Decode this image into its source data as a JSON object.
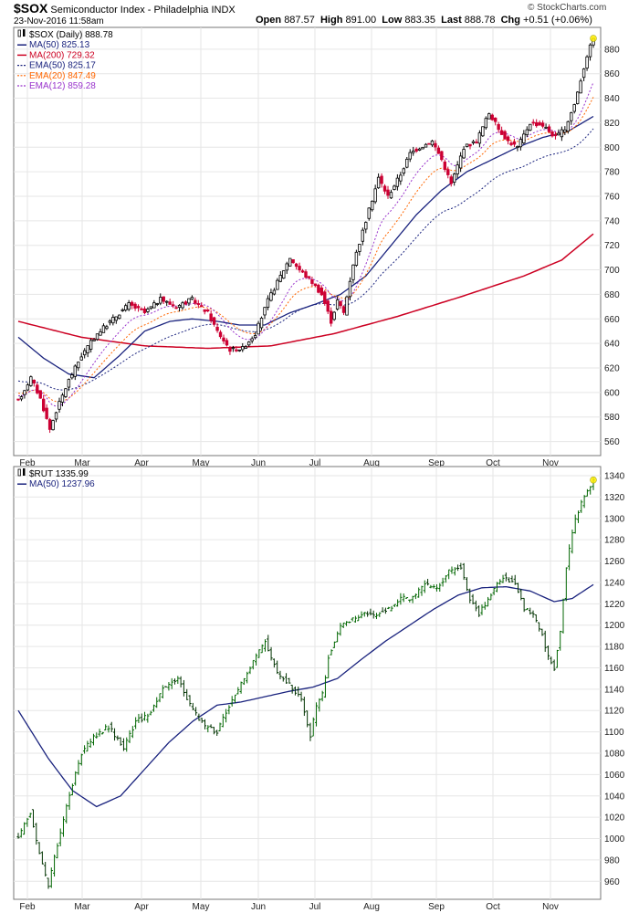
{
  "header": {
    "symbol": "$SOX",
    "description": "Semiconductor Index - Philadelphia",
    "exchange": "INDX",
    "date": "23-Nov-2016 11:58am",
    "open_label": "Open",
    "open": "887.57",
    "high_label": "High",
    "high": "891.00",
    "low_label": "Low",
    "low": "883.35",
    "last_label": "Last",
    "last": "888.78",
    "chg_label": "Chg",
    "chg": "+0.51 (+0.06%)",
    "brand": "© StockCharts.com"
  },
  "chart_data": [
    {
      "type": "candlestick",
      "legend": [
        {
          "label": "$SOX (Daily) 888.78",
          "color": "#000000",
          "style": "candle"
        },
        {
          "label": "MA(50) 825.13",
          "color": "#1a237e",
          "style": "solid"
        },
        {
          "label": "MA(200) 729.32",
          "color": "#cc0022",
          "style": "solid"
        },
        {
          "label": "EMA(50) 825.17",
          "color": "#1a237e",
          "style": "dotted"
        },
        {
          "label": "EMA(20) 847.49",
          "color": "#ff6600",
          "style": "dotted"
        },
        {
          "label": "EMA(12) 859.28",
          "color": "#9933cc",
          "style": "dotted"
        }
      ],
      "x_labels": [
        "Feb",
        "Mar",
        "Apr",
        "May",
        "Jun",
        "Jul",
        "Aug",
        "Sep",
        "Oct",
        "Nov"
      ],
      "y_ticks": [
        560,
        580,
        600,
        620,
        640,
        660,
        680,
        700,
        720,
        740,
        760,
        780,
        800,
        820,
        840,
        860,
        880
      ],
      "ylim": [
        550,
        897
      ],
      "close_anchors": [
        [
          0,
          593
        ],
        [
          4,
          612
        ],
        [
          7,
          595
        ],
        [
          10,
          570
        ],
        [
          12,
          585
        ],
        [
          16,
          610
        ],
        [
          20,
          630
        ],
        [
          25,
          648
        ],
        [
          30,
          660
        ],
        [
          35,
          672
        ],
        [
          40,
          665
        ],
        [
          45,
          676
        ],
        [
          50,
          670
        ],
        [
          55,
          676
        ],
        [
          60,
          665
        ],
        [
          63,
          650
        ],
        [
          67,
          635
        ],
        [
          71,
          636
        ],
        [
          75,
          648
        ],
        [
          79,
          675
        ],
        [
          83,
          695
        ],
        [
          86,
          710
        ],
        [
          89,
          700
        ],
        [
          93,
          690
        ],
        [
          96,
          680
        ],
        [
          99,
          658
        ],
        [
          101,
          675
        ],
        [
          103,
          665
        ],
        [
          106,
          705
        ],
        [
          110,
          740
        ],
        [
          114,
          775
        ],
        [
          117,
          760
        ],
        [
          121,
          778
        ],
        [
          124,
          795
        ],
        [
          127,
          800
        ],
        [
          131,
          805
        ],
        [
          134,
          790
        ],
        [
          137,
          770
        ],
        [
          141,
          800
        ],
        [
          145,
          805
        ],
        [
          149,
          828
        ],
        [
          152,
          815
        ],
        [
          155,
          805
        ],
        [
          158,
          800
        ],
        [
          162,
          820
        ],
        [
          166,
          818
        ],
        [
          170,
          808
        ],
        [
          173,
          815
        ],
        [
          176,
          835
        ],
        [
          180,
          875
        ],
        [
          182,
          888.78
        ]
      ],
      "ma50_anchors": [
        [
          0,
          645
        ],
        [
          8,
          628
        ],
        [
          16,
          615
        ],
        [
          24,
          612
        ],
        [
          32,
          630
        ],
        [
          40,
          650
        ],
        [
          48,
          658
        ],
        [
          55,
          660
        ],
        [
          63,
          658
        ],
        [
          70,
          655
        ],
        [
          78,
          655
        ],
        [
          86,
          665
        ],
        [
          94,
          672
        ],
        [
          102,
          680
        ],
        [
          110,
          695
        ],
        [
          118,
          720
        ],
        [
          126,
          745
        ],
        [
          134,
          765
        ],
        [
          142,
          780
        ],
        [
          150,
          790
        ],
        [
          158,
          800
        ],
        [
          166,
          808
        ],
        [
          174,
          813
        ],
        [
          182,
          825.13
        ]
      ],
      "ma200_anchors": [
        [
          0,
          658
        ],
        [
          20,
          645
        ],
        [
          40,
          638
        ],
        [
          60,
          636
        ],
        [
          80,
          638
        ],
        [
          100,
          648
        ],
        [
          120,
          662
        ],
        [
          140,
          678
        ],
        [
          160,
          695
        ],
        [
          172,
          708
        ],
        [
          182,
          729.32
        ]
      ]
    },
    {
      "type": "ohlc",
      "legend": [
        {
          "label": "$RUT 1335.99",
          "color": "#000000",
          "style": "ohlc"
        },
        {
          "label": "MA(50) 1237.96",
          "color": "#1a237e",
          "style": "solid"
        }
      ],
      "x_labels": [
        "Feb",
        "Mar",
        "Apr",
        "May",
        "Jun",
        "Jul",
        "Aug",
        "Sep",
        "Oct",
        "Nov"
      ],
      "y_ticks": [
        960,
        980,
        1000,
        1020,
        1040,
        1060,
        1080,
        1100,
        1120,
        1140,
        1160,
        1180,
        1200,
        1220,
        1240,
        1260,
        1280,
        1300,
        1320,
        1340
      ],
      "ylim": [
        944,
        1346
      ],
      "close_anchors": [
        [
          0,
          1000
        ],
        [
          4,
          1025
        ],
        [
          7,
          985
        ],
        [
          10,
          955
        ],
        [
          13,
          995
        ],
        [
          17,
          1040
        ],
        [
          21,
          1080
        ],
        [
          25,
          1095
        ],
        [
          30,
          1105
        ],
        [
          35,
          1085
        ],
        [
          39,
          1110
        ],
        [
          43,
          1115
        ],
        [
          48,
          1140
        ],
        [
          53,
          1150
        ],
        [
          58,
          1120
        ],
        [
          62,
          1105
        ],
        [
          66,
          1100
        ],
        [
          70,
          1125
        ],
        [
          74,
          1145
        ],
        [
          78,
          1165
        ],
        [
          82,
          1185
        ],
        [
          86,
          1155
        ],
        [
          90,
          1145
        ],
        [
          94,
          1130
        ],
        [
          97,
          1095
        ],
        [
          99,
          1125
        ],
        [
          101,
          1135
        ],
        [
          103,
          1170
        ],
        [
          107,
          1200
        ],
        [
          111,
          1205
        ],
        [
          115,
          1210
        ],
        [
          119,
          1210
        ],
        [
          123,
          1215
        ],
        [
          127,
          1225
        ],
        [
          131,
          1225
        ],
        [
          135,
          1238
        ],
        [
          139,
          1235
        ],
        [
          143,
          1250
        ],
        [
          147,
          1255
        ],
        [
          150,
          1225
        ],
        [
          153,
          1210
        ],
        [
          157,
          1230
        ],
        [
          161,
          1245
        ],
        [
          165,
          1240
        ],
        [
          168,
          1215
        ],
        [
          171,
          1210
        ],
        [
          174,
          1190
        ],
        [
          176,
          1170
        ],
        [
          178,
          1160
        ],
        [
          180,
          1195
        ],
        [
          182,
          1255
        ],
        [
          185,
          1300
        ],
        [
          188,
          1320
        ],
        [
          191,
          1335.99
        ]
      ],
      "ma50_anchors": [
        [
          0,
          1120
        ],
        [
          10,
          1075
        ],
        [
          18,
          1045
        ],
        [
          26,
          1030
        ],
        [
          34,
          1040
        ],
        [
          42,
          1065
        ],
        [
          50,
          1090
        ],
        [
          58,
          1110
        ],
        [
          66,
          1125
        ],
        [
          74,
          1128
        ],
        [
          82,
          1133
        ],
        [
          90,
          1138
        ],
        [
          98,
          1142
        ],
        [
          106,
          1150
        ],
        [
          114,
          1168
        ],
        [
          122,
          1185
        ],
        [
          130,
          1200
        ],
        [
          138,
          1215
        ],
        [
          146,
          1228
        ],
        [
          154,
          1235
        ],
        [
          162,
          1236
        ],
        [
          170,
          1232
        ],
        [
          178,
          1222
        ],
        [
          184,
          1225
        ],
        [
          191,
          1237.96
        ]
      ]
    }
  ]
}
